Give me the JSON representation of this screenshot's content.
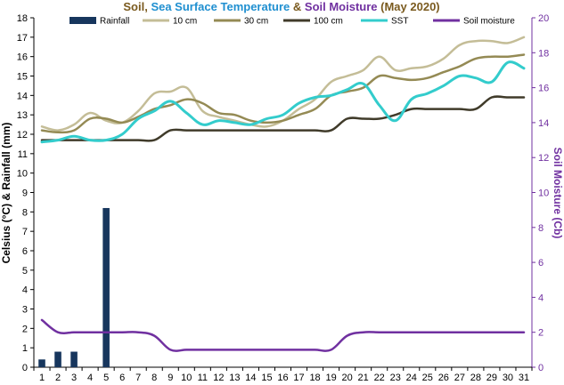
{
  "chart_data": {
    "type": "line",
    "title_parts": [
      {
        "text": "Soil",
        "color": "#7a5a1e"
      },
      {
        "text": ", ",
        "color": "#7a5a1e"
      },
      {
        "text": "Sea Surface Temperature",
        "color": "#1f8fd0"
      },
      {
        "text": " & ",
        "color": "#7a5a1e"
      },
      {
        "text": "Soil Moisture",
        "color": "#7030a0"
      },
      {
        "text": " (May 2020)",
        "color": "#7a5a1e"
      }
    ],
    "ylabel": "Celsius (°C) & Rainfall (mm)",
    "y2label": "Soil Moisture (Cb)",
    "ylim": [
      0,
      18
    ],
    "y2lim": [
      0,
      20
    ],
    "x": [
      1,
      2,
      3,
      4,
      5,
      6,
      7,
      8,
      9,
      10,
      11,
      12,
      13,
      14,
      15,
      16,
      17,
      18,
      19,
      20,
      21,
      22,
      23,
      24,
      25,
      26,
      27,
      28,
      29,
      30,
      31
    ],
    "grid": false,
    "legend_position": "top",
    "series": [
      {
        "name": "Rainfall",
        "type": "bar",
        "axis": "left",
        "color": "#17365d",
        "values": [
          0.4,
          0.8,
          0.8,
          0,
          8.2,
          0,
          0,
          0,
          0,
          0,
          0,
          0,
          0,
          0,
          0,
          0,
          0,
          0,
          0,
          0,
          0,
          0,
          0,
          0,
          0,
          0,
          0,
          0,
          0,
          0,
          0
        ]
      },
      {
        "name": "10 cm",
        "type": "line",
        "axis": "left",
        "color": "#c4bd97",
        "values": [
          12.4,
          12.2,
          12.5,
          13.1,
          12.7,
          12.6,
          13.2,
          14.1,
          14.2,
          14.4,
          13.2,
          12.9,
          12.7,
          12.5,
          12.4,
          12.7,
          13.3,
          13.8,
          14.7,
          15.0,
          15.3,
          16.0,
          15.3,
          15.4,
          15.5,
          15.9,
          16.6,
          16.8,
          16.8,
          16.7,
          17.0
        ]
      },
      {
        "name": "30 cm",
        "type": "line",
        "axis": "left",
        "color": "#948a54",
        "values": [
          12.2,
          12.1,
          12.2,
          12.8,
          12.8,
          12.6,
          12.9,
          13.3,
          13.5,
          13.8,
          13.6,
          13.1,
          13.0,
          12.7,
          12.6,
          12.7,
          13.0,
          13.3,
          14.0,
          14.2,
          14.4,
          15.0,
          14.9,
          14.8,
          14.9,
          15.2,
          15.5,
          15.9,
          16.0,
          16.0,
          16.1
        ]
      },
      {
        "name": "100 cm",
        "type": "line",
        "axis": "left",
        "color": "#403b2a",
        "values": [
          11.7,
          11.7,
          11.7,
          11.7,
          11.7,
          11.7,
          11.7,
          11.7,
          12.2,
          12.2,
          12.2,
          12.2,
          12.2,
          12.2,
          12.2,
          12.2,
          12.2,
          12.2,
          12.2,
          12.8,
          12.8,
          12.8,
          13.0,
          13.3,
          13.3,
          13.3,
          13.3,
          13.3,
          13.9,
          13.9,
          13.9
        ]
      },
      {
        "name": "SST",
        "type": "line",
        "axis": "left",
        "color": "#33cccc",
        "values": [
          11.6,
          11.7,
          11.9,
          11.7,
          11.7,
          12.0,
          12.8,
          13.2,
          13.7,
          13.1,
          12.5,
          12.7,
          12.6,
          12.5,
          12.8,
          13.0,
          13.6,
          13.9,
          14.0,
          14.3,
          14.6,
          13.5,
          12.7,
          13.8,
          14.1,
          14.5,
          15.0,
          14.9,
          14.7,
          15.7,
          15.4
        ]
      },
      {
        "name": "Soil moisture",
        "type": "line",
        "axis": "right",
        "color": "#7030a0",
        "values": [
          2.7,
          2.0,
          2.0,
          2.0,
          2.0,
          2.0,
          2.0,
          1.8,
          1.0,
          1.0,
          1.0,
          1.0,
          1.0,
          1.0,
          1.0,
          1.0,
          1.0,
          1.0,
          1.0,
          1.8,
          2.0,
          2.0,
          2.0,
          2.0,
          2.0,
          2.0,
          2.0,
          2.0,
          2.0,
          2.0,
          2.0
        ]
      }
    ]
  }
}
